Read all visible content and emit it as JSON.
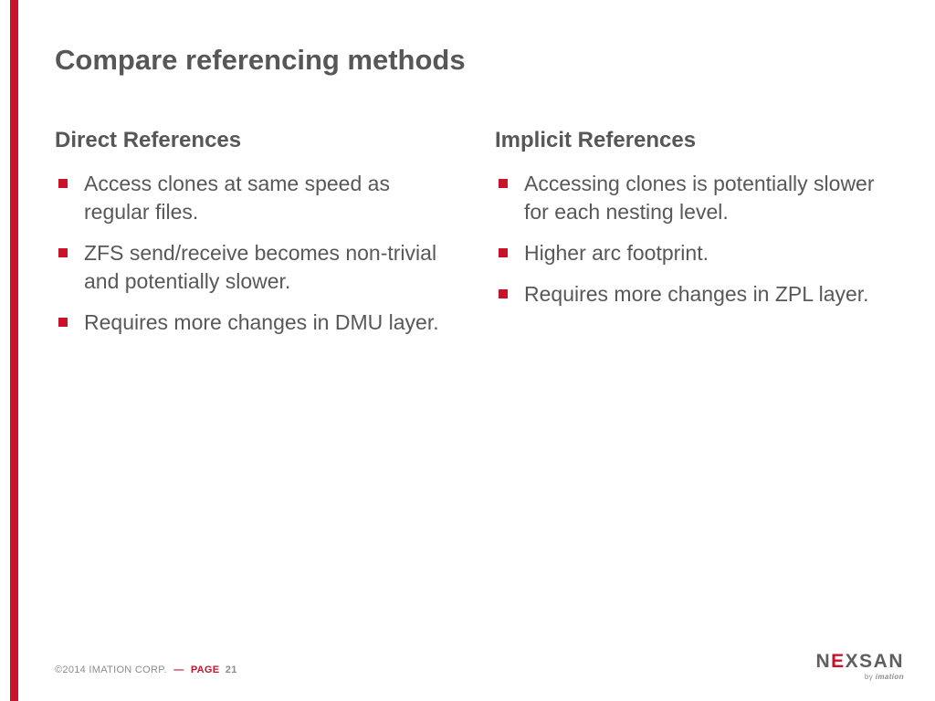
{
  "accent_color": "#c8132b",
  "background_color": "#ffffff",
  "title_color": "#575757",
  "body_text_color": "#585858",
  "title": "Compare referencing methods",
  "left": {
    "heading": "Direct References",
    "items": [
      "Access clones at same speed as regular files.",
      "ZFS send/receive becomes non-trivial and potentially slower.",
      "Requires more changes in DMU layer."
    ]
  },
  "right": {
    "heading": "Implicit References",
    "items": [
      "Accessing clones is potentially slower for each nesting level.",
      "Higher arc footprint.",
      "Requires more changes in ZPL layer."
    ]
  },
  "footer": {
    "copyright": "©2014 IMATION CORP.",
    "dash": "—",
    "page_label": "PAGE",
    "page_number": "21"
  },
  "logo": {
    "name_part1": "N",
    "name_red": "E",
    "name_part2": "XSAN",
    "by": "by ",
    "brand": "imation"
  }
}
